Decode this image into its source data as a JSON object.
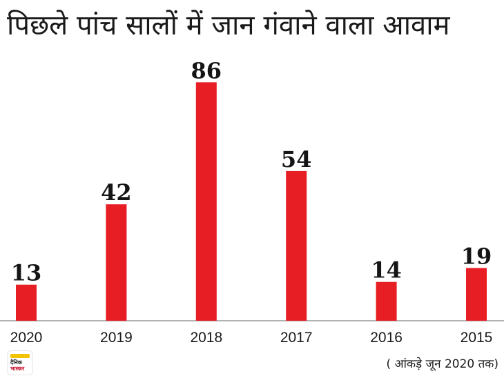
{
  "title": "पिछले पांच सालों में जान गंवाने वाला आवाम",
  "footnote": "( आंकड़े जून 2020 तक)",
  "logo": {
    "line1": "दैनिक",
    "line2": "भास्कर"
  },
  "colors": {
    "bar": "#e81e25",
    "axis": "#9a9a9a",
    "text": "#1a1a1a"
  },
  "chart_data": {
    "type": "bar",
    "categories": [
      "2020",
      "2019",
      "2018",
      "2017",
      "2016",
      "2015"
    ],
    "values": [
      13,
      42,
      86,
      54,
      14,
      19
    ],
    "title": "पिछले पांच सालों में जान गंवाने वाला आवाम",
    "xlabel": "",
    "ylabel": "",
    "ylim": [
      0,
      100
    ],
    "grid": false,
    "legend": "none"
  }
}
